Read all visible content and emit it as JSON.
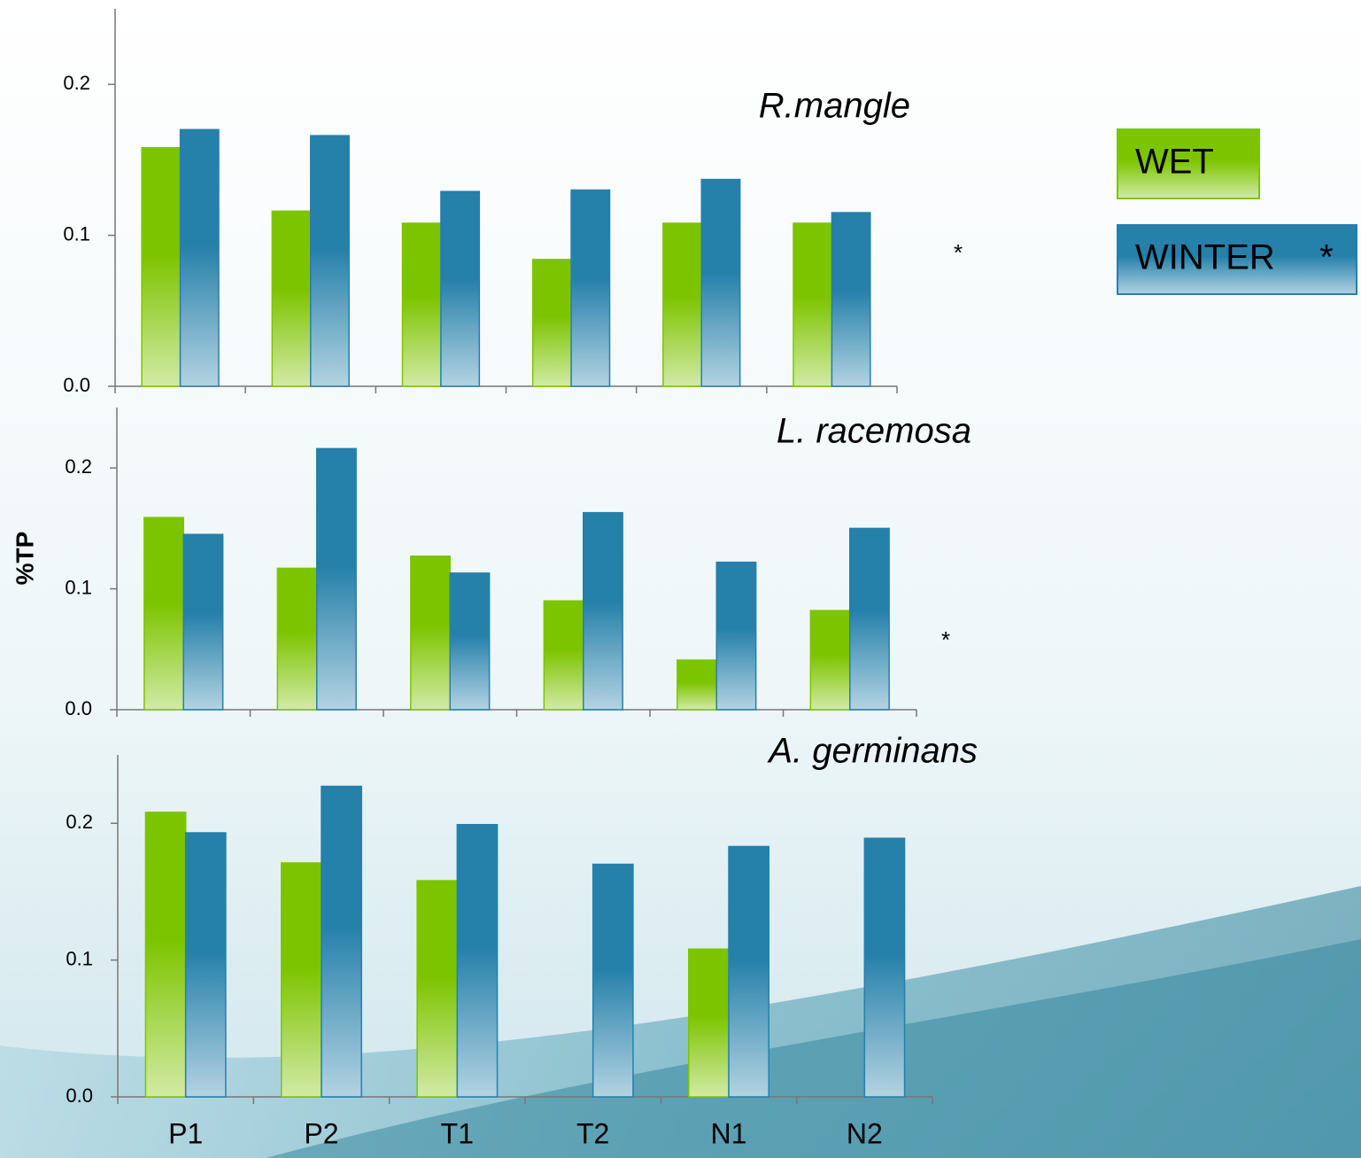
{
  "chart_data": [
    {
      "type": "bar",
      "title": "R.mangle",
      "annotation": "*",
      "legend_note": "*",
      "series": [
        {
          "name": "WET",
          "color": "#7dc400",
          "values": [
            0.158,
            0.116,
            0.108,
            0.084,
            0.108,
            0.108
          ]
        },
        {
          "name": "WINTER",
          "color": "#2580aa",
          "values": [
            0.17,
            0.166,
            0.129,
            0.13,
            0.137,
            0.115
          ]
        }
      ],
      "ylim": [
        0,
        0.25
      ],
      "yticks": [
        {
          "value": 0,
          "label": "0.0"
        },
        0.1,
        0.2
      ]
    },
    {
      "type": "bar",
      "title": "L. racemosa",
      "annotation": "*",
      "y_label": "%TP",
      "series": [
        {
          "color": "#7dc400",
          "values": [
            0.159,
            0.117,
            0.127,
            0.09,
            0.041,
            0.082
          ]
        },
        {
          "color": "#2580aa",
          "values": [
            0.145,
            0.216,
            0.113,
            0.163,
            0.122,
            0.15
          ]
        }
      ],
      "ylim": [
        0,
        0.25
      ],
      "yticks": [
        {
          "value": 0,
          "label": "0.0"
        },
        0.1,
        0.2
      ]
    },
    {
      "type": "bar",
      "title": "A. germinans",
      "categories": [
        "P1",
        "P2",
        "T1",
        "T2",
        "N1",
        "N2"
      ],
      "series": [
        {
          "color": "#7dc400",
          "values": [
            0.208,
            0.171,
            0.158,
            null,
            0.108,
            null
          ]
        },
        {
          "color": "#2580aa",
          "values": [
            0.193,
            0.227,
            0.199,
            0.17,
            0.183,
            0.189
          ]
        }
      ],
      "ylim": [
        0,
        0.25
      ],
      "yticks": [
        {
          "value": 0,
          "label": "0.0"
        },
        0.1,
        0.2
      ]
    }
  ]
}
